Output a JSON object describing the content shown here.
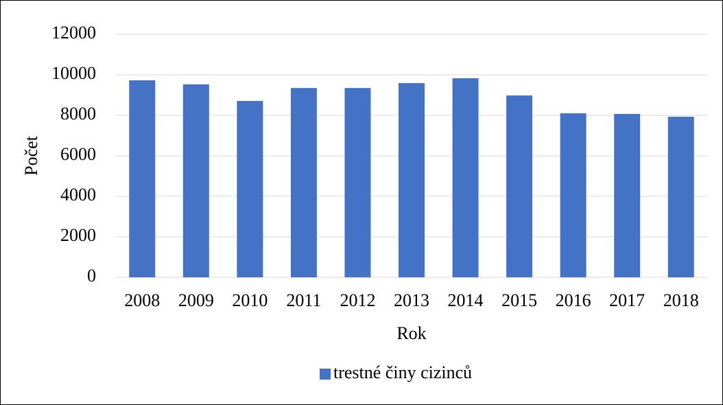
{
  "chart_data": {
    "type": "bar",
    "xlabel": "Rok",
    "ylabel": "Počet",
    "categories": [
      "2008",
      "2009",
      "2010",
      "2011",
      "2012",
      "2013",
      "2014",
      "2015",
      "2016",
      "2017",
      "2018"
    ],
    "series": [
      {
        "name": "trestné činy cizinců",
        "color": "#4472c4",
        "values": [
          9730,
          9530,
          8710,
          9350,
          9350,
          9590,
          9830,
          8980,
          8100,
          8070,
          7930
        ]
      }
    ],
    "ylim": [
      0,
      12000
    ],
    "yticks": [
      0,
      2000,
      4000,
      6000,
      8000,
      10000,
      12000
    ],
    "grid": true,
    "legend": "bottom"
  }
}
